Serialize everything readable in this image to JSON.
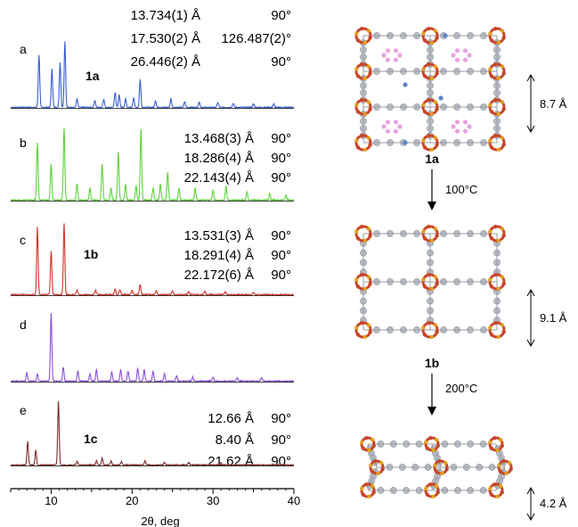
{
  "pxrd": {
    "xlabel": "2θ, deg",
    "xlim": [
      5,
      40
    ],
    "xticks": [
      "10",
      "20",
      "30",
      "40"
    ],
    "panels": [
      {
        "letter": "a",
        "compound": "1a",
        "color": "#3a5fd0",
        "cell": [
          {
            "length": "13.734(1) Å",
            "angle": "90°"
          },
          {
            "length": "17.530(2) Å",
            "angle": "126.487(2)°"
          },
          {
            "length": "26.446(2) Å",
            "angle": "90°"
          }
        ],
        "peaks": [
          [
            8.5,
            0.75
          ],
          [
            10.1,
            0.55
          ],
          [
            11.1,
            0.65
          ],
          [
            11.7,
            0.95
          ],
          [
            13.2,
            0.12
          ],
          [
            15.4,
            0.1
          ],
          [
            16.5,
            0.12
          ],
          [
            17.9,
            0.22
          ],
          [
            18.4,
            0.18
          ],
          [
            19.2,
            0.12
          ],
          [
            20.2,
            0.14
          ],
          [
            21.0,
            0.4
          ],
          [
            22.9,
            0.1
          ],
          [
            24.8,
            0.12
          ],
          [
            26.5,
            0.08
          ],
          [
            28.3,
            0.08
          ],
          [
            30.6,
            0.07
          ],
          [
            32.5,
            0.06
          ],
          [
            35.0,
            0.05
          ],
          [
            37.5,
            0.05
          ]
        ]
      },
      {
        "letter": "b",
        "compound": "",
        "color": "#5ed23c",
        "cell": [
          {
            "length": "13.468(3) Å",
            "angle": "90°"
          },
          {
            "length": "18.286(4) Å",
            "angle": "90°"
          },
          {
            "length": "22.143(4) Å",
            "angle": "90°"
          }
        ],
        "peaks": [
          [
            8.3,
            0.72
          ],
          [
            10.0,
            0.45
          ],
          [
            11.6,
            0.9
          ],
          [
            13.2,
            0.2
          ],
          [
            14.8,
            0.15
          ],
          [
            16.3,
            0.45
          ],
          [
            17.4,
            0.15
          ],
          [
            18.3,
            0.6
          ],
          [
            19.2,
            0.2
          ],
          [
            20.5,
            0.18
          ],
          [
            21.1,
            0.88
          ],
          [
            22.6,
            0.15
          ],
          [
            23.5,
            0.2
          ],
          [
            24.4,
            0.35
          ],
          [
            25.8,
            0.15
          ],
          [
            27.8,
            0.15
          ],
          [
            30.0,
            0.12
          ],
          [
            31.6,
            0.18
          ],
          [
            34.2,
            0.1
          ],
          [
            37.0,
            0.08
          ],
          [
            39.0,
            0.07
          ]
        ]
      },
      {
        "letter": "c",
        "compound": "1b",
        "color": "#d2342a",
        "cell": [
          {
            "length": "13.531(3) Å",
            "angle": "90°"
          },
          {
            "length": "18.291(4) Å",
            "angle": "90°"
          },
          {
            "length": "22.172(6) Å",
            "angle": "90°"
          }
        ],
        "peaks": [
          [
            8.3,
            0.92
          ],
          [
            10.0,
            0.6
          ],
          [
            11.6,
            0.98
          ],
          [
            13.2,
            0.06
          ],
          [
            15.5,
            0.06
          ],
          [
            17.9,
            0.08
          ],
          [
            18.5,
            0.07
          ],
          [
            20.0,
            0.06
          ],
          [
            21.0,
            0.14
          ],
          [
            23.0,
            0.05
          ],
          [
            25.0,
            0.05
          ],
          [
            27.0,
            0.04
          ],
          [
            29.0,
            0.04
          ],
          [
            31.5,
            0.04
          ],
          [
            35.0,
            0.03
          ]
        ]
      },
      {
        "letter": "d",
        "compound": "",
        "color": "#8a4fd8",
        "cell": [],
        "peaks": [
          [
            7.0,
            0.12
          ],
          [
            8.3,
            0.1
          ],
          [
            10.0,
            0.95
          ],
          [
            11.5,
            0.2
          ],
          [
            13.3,
            0.14
          ],
          [
            14.8,
            0.1
          ],
          [
            15.6,
            0.16
          ],
          [
            17.5,
            0.12
          ],
          [
            18.6,
            0.16
          ],
          [
            19.5,
            0.14
          ],
          [
            20.7,
            0.18
          ],
          [
            21.5,
            0.16
          ],
          [
            22.6,
            0.14
          ],
          [
            24.0,
            0.1
          ],
          [
            25.5,
            0.08
          ],
          [
            27.5,
            0.06
          ],
          [
            30.0,
            0.06
          ],
          [
            33.0,
            0.05
          ],
          [
            36.0,
            0.05
          ]
        ]
      },
      {
        "letter": "e",
        "compound": "1c",
        "color": "#7a2b2b",
        "cell": [
          {
            "length": "12.66 Å",
            "angle": "90°"
          },
          {
            "length": "8.40 Å",
            "angle": "90°"
          },
          {
            "length": "21.62 Å",
            "angle": "90°"
          }
        ],
        "peaks": [
          [
            7.1,
            0.35
          ],
          [
            8.1,
            0.22
          ],
          [
            10.9,
            0.95
          ],
          [
            13.2,
            0.05
          ],
          [
            15.6,
            0.06
          ],
          [
            16.3,
            0.1
          ],
          [
            17.4,
            0.06
          ],
          [
            18.7,
            0.05
          ],
          [
            21.6,
            0.06
          ],
          [
            24.0,
            0.04
          ],
          [
            27.0,
            0.04
          ],
          [
            31.0,
            0.03
          ]
        ]
      }
    ]
  },
  "structures": [
    {
      "label": "1a",
      "spacing": "8.7 Å"
    },
    {
      "label": "1b",
      "spacing": "9.1 Å"
    },
    {
      "label": "1c",
      "spacing": "4.2 Å"
    }
  ],
  "transitions": [
    "100°C",
    "200°C"
  ],
  "colors": {
    "metal_node": "#c8462a",
    "oxygen": "#e0a020",
    "ligand": "#b8bcc4",
    "guest": "#e6a4dc",
    "nitrogen": "#5b86c8"
  }
}
